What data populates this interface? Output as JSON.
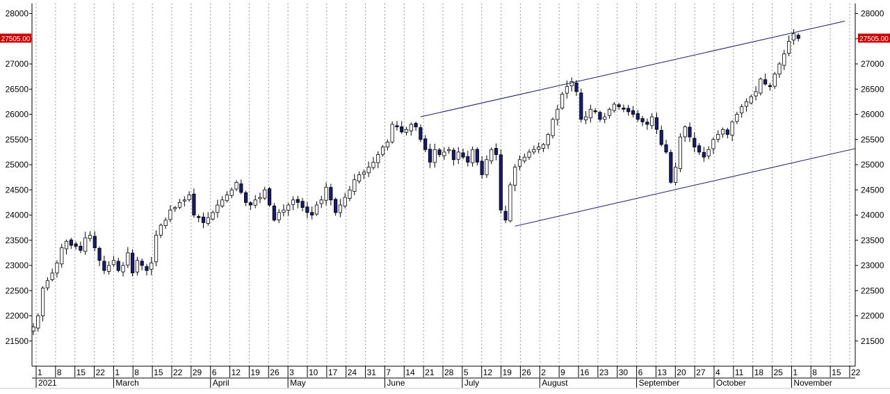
{
  "chart_data": {
    "type": "candlestick",
    "title": "",
    "xlabel": "",
    "ylabel": "",
    "ylim": [
      21000,
      28200
    ],
    "y_ticks": [
      21500,
      22000,
      22500,
      23000,
      23500,
      24000,
      24500,
      25000,
      25500,
      26000,
      26500,
      27000,
      27500,
      28000
    ],
    "x_ticks": [
      "1",
      "8",
      "15",
      "22",
      "1",
      "8",
      "15",
      "22",
      "29",
      "6",
      "12",
      "19",
      "26",
      "3",
      "10",
      "17",
      "24",
      "31",
      "7",
      "14",
      "21",
      "28",
      "5",
      "12",
      "19",
      "26",
      "2",
      "9",
      "16",
      "23",
      "30",
      "6",
      "13",
      "20",
      "27",
      "4",
      "11",
      "18",
      "25",
      "1",
      "8",
      "15",
      "22"
    ],
    "month_labels": [
      "2021",
      "March",
      "April",
      "May",
      "June",
      "July",
      "August",
      "September",
      "October",
      "November"
    ],
    "last_price": "27505.00",
    "grid": "vertical dotted",
    "colors": {
      "up_candle": "#ffffff",
      "down_candle": "#1a1a6e",
      "wick": "#000000",
      "channel": "#1a1a6e",
      "price_tag": "#cc0000"
    },
    "trend_channel": {
      "upper": [
        [
          "June 7",
          25950
        ],
        [
          "November 22",
          27850
        ]
      ],
      "lower": [
        [
          "July 19",
          23780
        ],
        [
          "November 22+",
          25320
        ]
      ]
    },
    "closes": [
      21780,
      22000,
      22550,
      22700,
      22850,
      23050,
      23350,
      23480,
      23400,
      23380,
      23300,
      23550,
      23600,
      23350,
      23100,
      22900,
      23000,
      23100,
      22900,
      23000,
      23250,
      22850,
      23100,
      23000,
      22900,
      23050,
      23600,
      23800,
      23900,
      24100,
      24150,
      24250,
      24300,
      24400,
      24000,
      23950,
      23850,
      23950,
      24050,
      24200,
      24300,
      24400,
      24500,
      24650,
      24450,
      24250,
      24200,
      24300,
      24350,
      24500,
      24200,
      23900,
      24050,
      24100,
      24200,
      24300,
      24250,
      24150,
      24050,
      24000,
      24200,
      24300,
      24550,
      24300,
      24050,
      24200,
      24350,
      24500,
      24700,
      24800,
      24850,
      24950,
      25050,
      25200,
      25350,
      25450,
      25800,
      25750,
      25650,
      25700,
      25800,
      25750,
      25500,
      25300,
      25050,
      25300,
      25200,
      25250,
      25300,
      25100,
      25250,
      25150,
      25050,
      25300,
      25050,
      24800,
      25100,
      25300,
      25200,
      24100,
      23900,
      24600,
      24950,
      25100,
      25150,
      25250,
      25300,
      25350,
      25400,
      25600,
      25900,
      26100,
      26400,
      26550,
      26650,
      26450,
      25900,
      25950,
      26100,
      26050,
      25900,
      25950,
      26100,
      26200,
      26150,
      26100,
      26050,
      26000,
      25900,
      25850,
      25800,
      25950,
      25700,
      25400,
      25250,
      24650,
      24950,
      25550,
      25750,
      25550,
      25350,
      25250,
      25150,
      25300,
      25500,
      25600,
      25700,
      25600,
      25850,
      26000,
      26150,
      26250,
      26350,
      26450,
      26700,
      26600,
      26550,
      26800,
      27000,
      27200,
      27450,
      27600,
      27505
    ]
  }
}
